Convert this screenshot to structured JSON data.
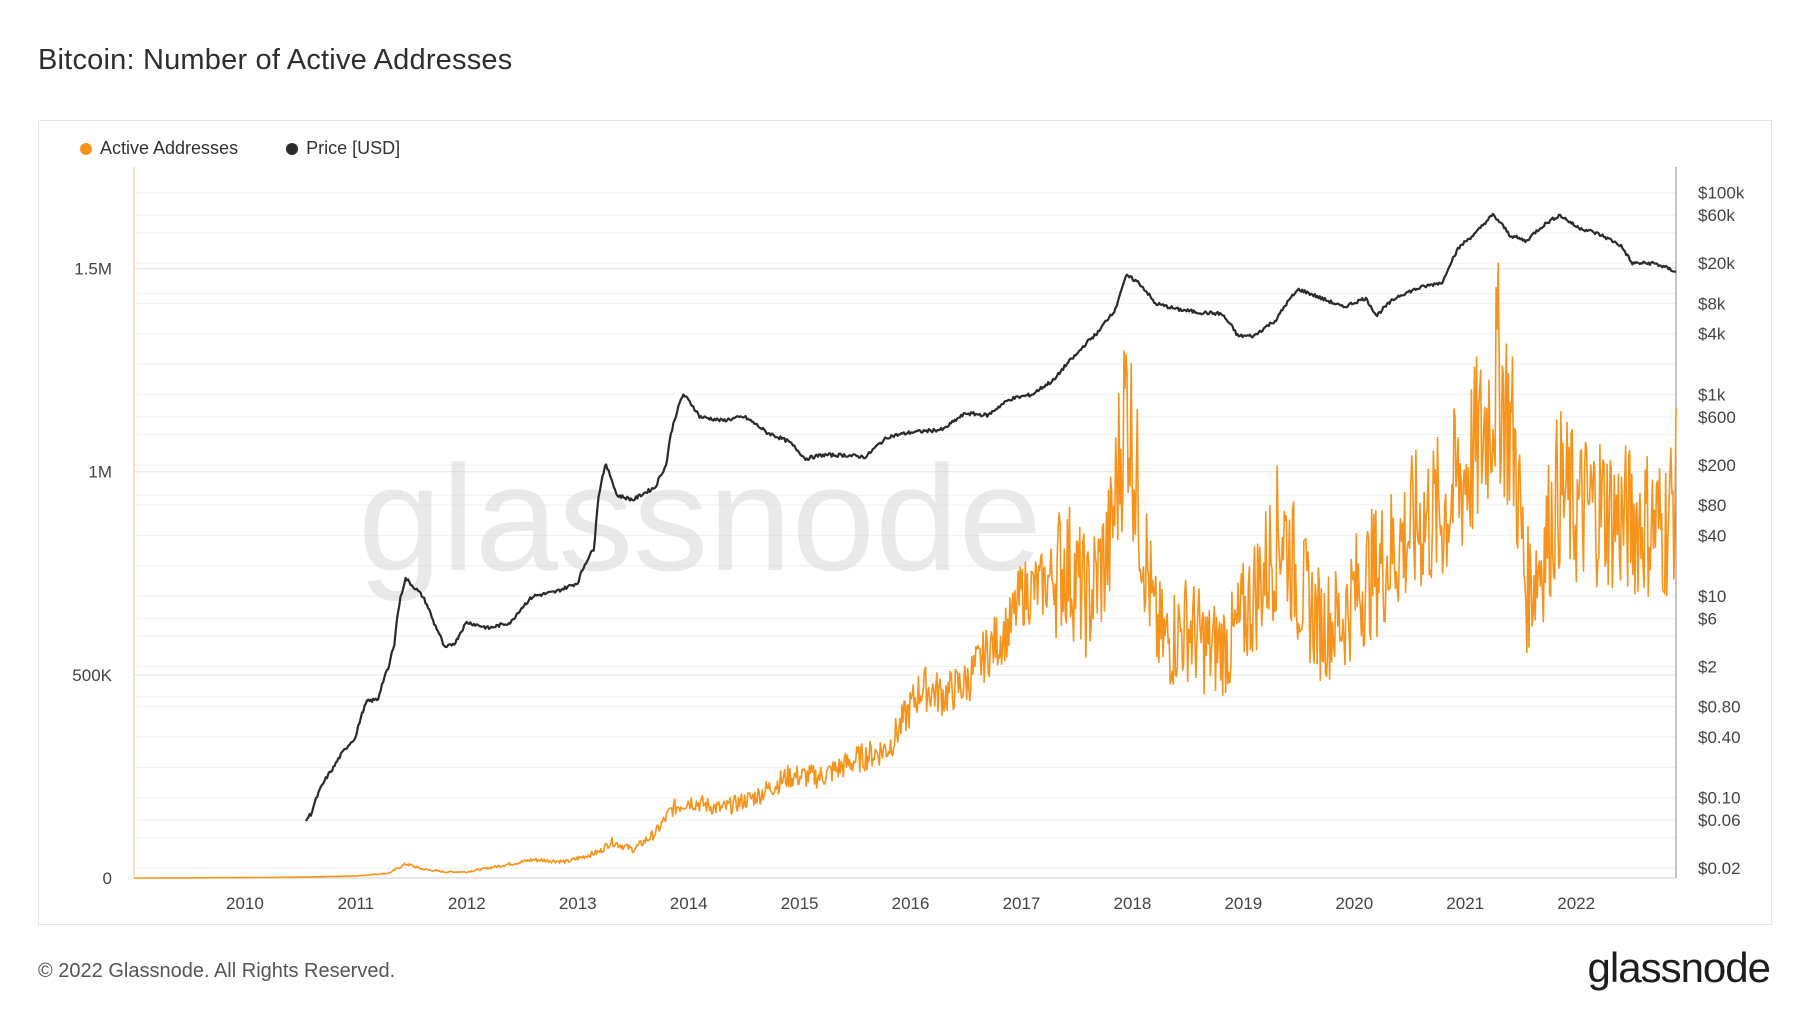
{
  "page_title": "Bitcoin: Number of Active Addresses",
  "legend": [
    {
      "label": "Active Addresses",
      "color": "#f7931a"
    },
    {
      "label": "Price [USD]",
      "color": "#2b2b2b"
    }
  ],
  "watermark": "glassnode",
  "footer": {
    "copyright": "© 2022 Glassnode. All Rights Reserved.",
    "logo": "glassnode"
  },
  "chart_data": {
    "type": "line",
    "title": "Bitcoin: Number of Active Addresses",
    "x_ticks": [
      "2010",
      "2011",
      "2012",
      "2013",
      "2014",
      "2015",
      "2016",
      "2017",
      "2018",
      "2019",
      "2020",
      "2021",
      "2022"
    ],
    "xlim": [
      2009.0,
      2022.9
    ],
    "left_axis": {
      "label": "Active Addresses",
      "ticks": [
        "0",
        "500K",
        "1M",
        "1.5M"
      ],
      "tick_values": [
        0,
        500000,
        1000000,
        1500000
      ],
      "ylim": [
        0,
        1750000
      ]
    },
    "right_axis": {
      "label": "Price [USD]",
      "scale": "log",
      "ticks": [
        "$0.02",
        "$0.06",
        "$0.10",
        "$0.40",
        "$0.80",
        "$2",
        "$6",
        "$10",
        "$40",
        "$80",
        "$200",
        "$600",
        "$1k",
        "$4k",
        "$8k",
        "$20k",
        "$60k",
        "$100k"
      ],
      "tick_values": [
        0.02,
        0.06,
        0.1,
        0.4,
        0.8,
        2,
        6,
        10,
        40,
        80,
        200,
        600,
        1000,
        4000,
        8000,
        20000,
        60000,
        100000
      ]
    },
    "series": [
      {
        "name": "Active Addresses",
        "axis": "left",
        "color": "#f7931a",
        "x": [
          2009.0,
          2009.5,
          2010.0,
          2010.5,
          2011.0,
          2011.3,
          2011.45,
          2011.6,
          2011.8,
          2012.0,
          2012.3,
          2012.6,
          2012.9,
          2013.2,
          2013.3,
          2013.5,
          2013.7,
          2013.85,
          2014.0,
          2014.3,
          2014.6,
          2014.9,
          2015.2,
          2015.5,
          2015.8,
          2016.0,
          2016.1,
          2016.3,
          2016.5,
          2016.7,
          2016.9,
          2017.0,
          2017.2,
          2017.4,
          2017.6,
          2017.8,
          2017.95,
          2018.05,
          2018.2,
          2018.3,
          2018.5,
          2018.7,
          2018.9,
          2019.0,
          2019.2,
          2019.35,
          2019.5,
          2019.7,
          2019.9,
          2020.0,
          2020.2,
          2020.4,
          2020.6,
          2020.8,
          2021.0,
          2021.15,
          2021.3,
          2021.45,
          2021.55,
          2021.7,
          2021.85,
          2022.0,
          2022.2,
          2022.4,
          2022.6,
          2022.8,
          2022.9
        ],
        "values": [
          0,
          300,
          1000,
          2000,
          5000,
          12000,
          35000,
          22000,
          15000,
          15000,
          30000,
          45000,
          40000,
          65000,
          90000,
          70000,
          110000,
          170000,
          190000,
          170000,
          200000,
          250000,
          250000,
          290000,
          320000,
          420000,
          470000,
          450000,
          480000,
          560000,
          620000,
          700000,
          720000,
          780000,
          680000,
          820000,
          1200000,
          940000,
          620000,
          580000,
          620000,
          560000,
          580000,
          640000,
          760000,
          870000,
          720000,
          620000,
          640000,
          700000,
          760000,
          820000,
          880000,
          900000,
          1000000,
          1080000,
          1250000,
          1050000,
          700000,
          800000,
          960000,
          900000,
          920000,
          880000,
          880000,
          860000,
          950000
        ]
      },
      {
        "name": "Price [USD]",
        "axis": "right",
        "color": "#2b2b2b",
        "x": [
          2010.55,
          2010.6,
          2010.8,
          2010.9,
          2011.0,
          2011.1,
          2011.2,
          2011.3,
          2011.35,
          2011.45,
          2011.5,
          2011.6,
          2011.7,
          2011.8,
          2011.9,
          2012.0,
          2012.2,
          2012.4,
          2012.6,
          2012.8,
          2013.0,
          2013.15,
          2013.25,
          2013.35,
          2013.5,
          2013.7,
          2013.8,
          2013.9,
          2013.95,
          2014.1,
          2014.3,
          2014.5,
          2014.7,
          2014.9,
          2015.05,
          2015.2,
          2015.4,
          2015.6,
          2015.8,
          2016.0,
          2016.3,
          2016.5,
          2016.7,
          2016.9,
          2017.1,
          2017.3,
          2017.5,
          2017.7,
          2017.85,
          2017.95,
          2018.05,
          2018.2,
          2018.4,
          2018.6,
          2018.8,
          2018.95,
          2019.1,
          2019.3,
          2019.5,
          2019.7,
          2019.9,
          2020.1,
          2020.2,
          2020.4,
          2020.6,
          2020.8,
          2020.95,
          2021.1,
          2021.25,
          2021.4,
          2021.55,
          2021.7,
          2021.85,
          2022.0,
          2022.2,
          2022.4,
          2022.5,
          2022.7,
          2022.9
        ],
        "values": [
          0.06,
          0.07,
          0.2,
          0.3,
          0.4,
          0.9,
          0.95,
          2,
          3.5,
          15,
          13,
          10,
          5.5,
          3,
          3.5,
          5.5,
          4.8,
          5.5,
          10,
          11,
          13.5,
          30,
          200,
          100,
          90,
          120,
          200,
          700,
          1000,
          600,
          550,
          600,
          420,
          340,
          230,
          250,
          250,
          240,
          380,
          420,
          450,
          650,
          620,
          900,
          1000,
          1400,
          2500,
          4200,
          7000,
          15000,
          13000,
          8000,
          7000,
          6500,
          6300,
          3800,
          3800,
          5500,
          11000,
          9000,
          7300,
          9000,
          6000,
          9500,
          11500,
          13000,
          29000,
          40000,
          60000,
          38000,
          33000,
          47000,
          60000,
          46000,
          39000,
          30000,
          20000,
          20000,
          16500
        ]
      }
    ]
  }
}
